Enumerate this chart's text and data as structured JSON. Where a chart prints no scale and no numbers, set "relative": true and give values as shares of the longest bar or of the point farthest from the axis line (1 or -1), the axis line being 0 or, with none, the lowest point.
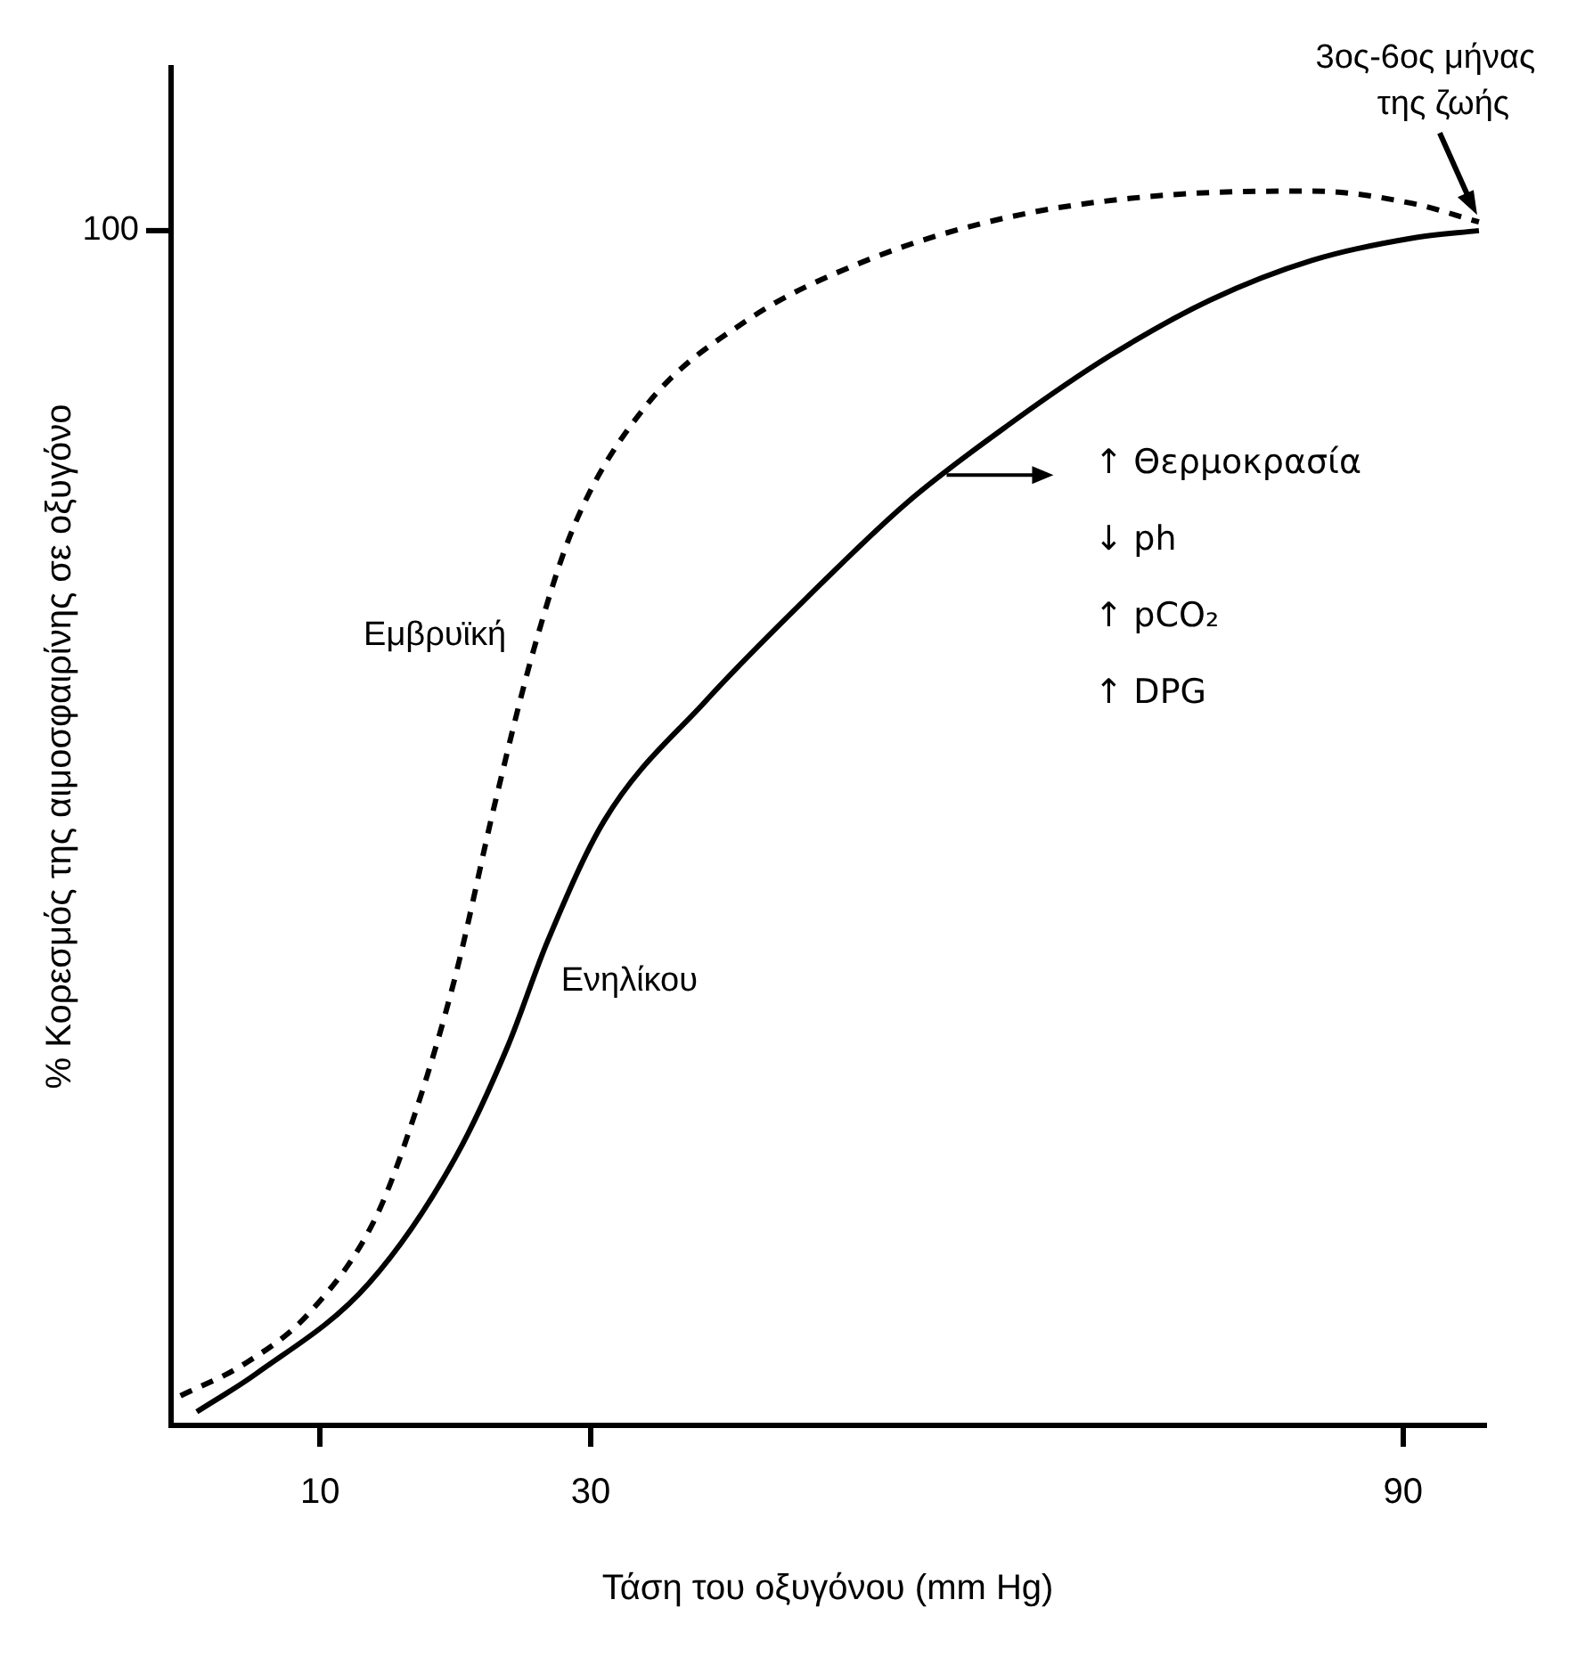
{
  "chart_data": {
    "type": "line",
    "xlabel": "Τάση του οξυγόνου (mm Hg)",
    "ylabel": "% Κορεσμός της αιμοσφαιρίνης σε οξυγόνο",
    "relative": true,
    "xlim": [
      -1,
      96
    ],
    "xticks": [
      10,
      30,
      90
    ],
    "grid": false,
    "legend": false,
    "marker": "none",
    "series": [
      {
        "name": "Εμβρυϊκή",
        "color": "#000000",
        "line_style": "dashed",
        "x": [
          -0.3,
          4.3,
          9.2,
          14.1,
          17.0,
          20.0,
          22.9,
          25.8,
          28.7,
          34.0,
          41.5,
          50.4,
          60.9,
          72.8,
          83.3,
          90.7,
          95.6
        ],
        "values": [
          0.024,
          0.049,
          0.091,
          0.168,
          0.252,
          0.364,
          0.503,
          0.629,
          0.727,
          0.825,
          0.895,
          0.944,
          0.979,
          0.997,
          1.0,
          0.99,
          0.975
        ]
      },
      {
        "name": "Ενηλίκου",
        "color": "#000000",
        "line_style": "solid",
        "x": [
          0.9,
          5.3,
          13.6,
          20.0,
          23.9,
          26.8,
          31.0,
          38.5,
          46.0,
          53.4,
          60.9,
          68.4,
          75.8,
          83.3,
          90.7,
          95.6
        ],
        "values": [
          0.011,
          0.042,
          0.115,
          0.217,
          0.308,
          0.392,
          0.49,
          0.587,
          0.671,
          0.748,
          0.811,
          0.867,
          0.912,
          0.944,
          0.962,
          0.968
        ]
      }
    ],
    "annotations": [
      "100",
      {
        "text": "3ος-6ος μήνας της ζωής",
        "x": 95.6,
        "y": 0.975
      },
      "↑ Θερμοκρασία\n↓ ph\n↑ pCO₂\n↑ DPG"
    ]
  }
}
